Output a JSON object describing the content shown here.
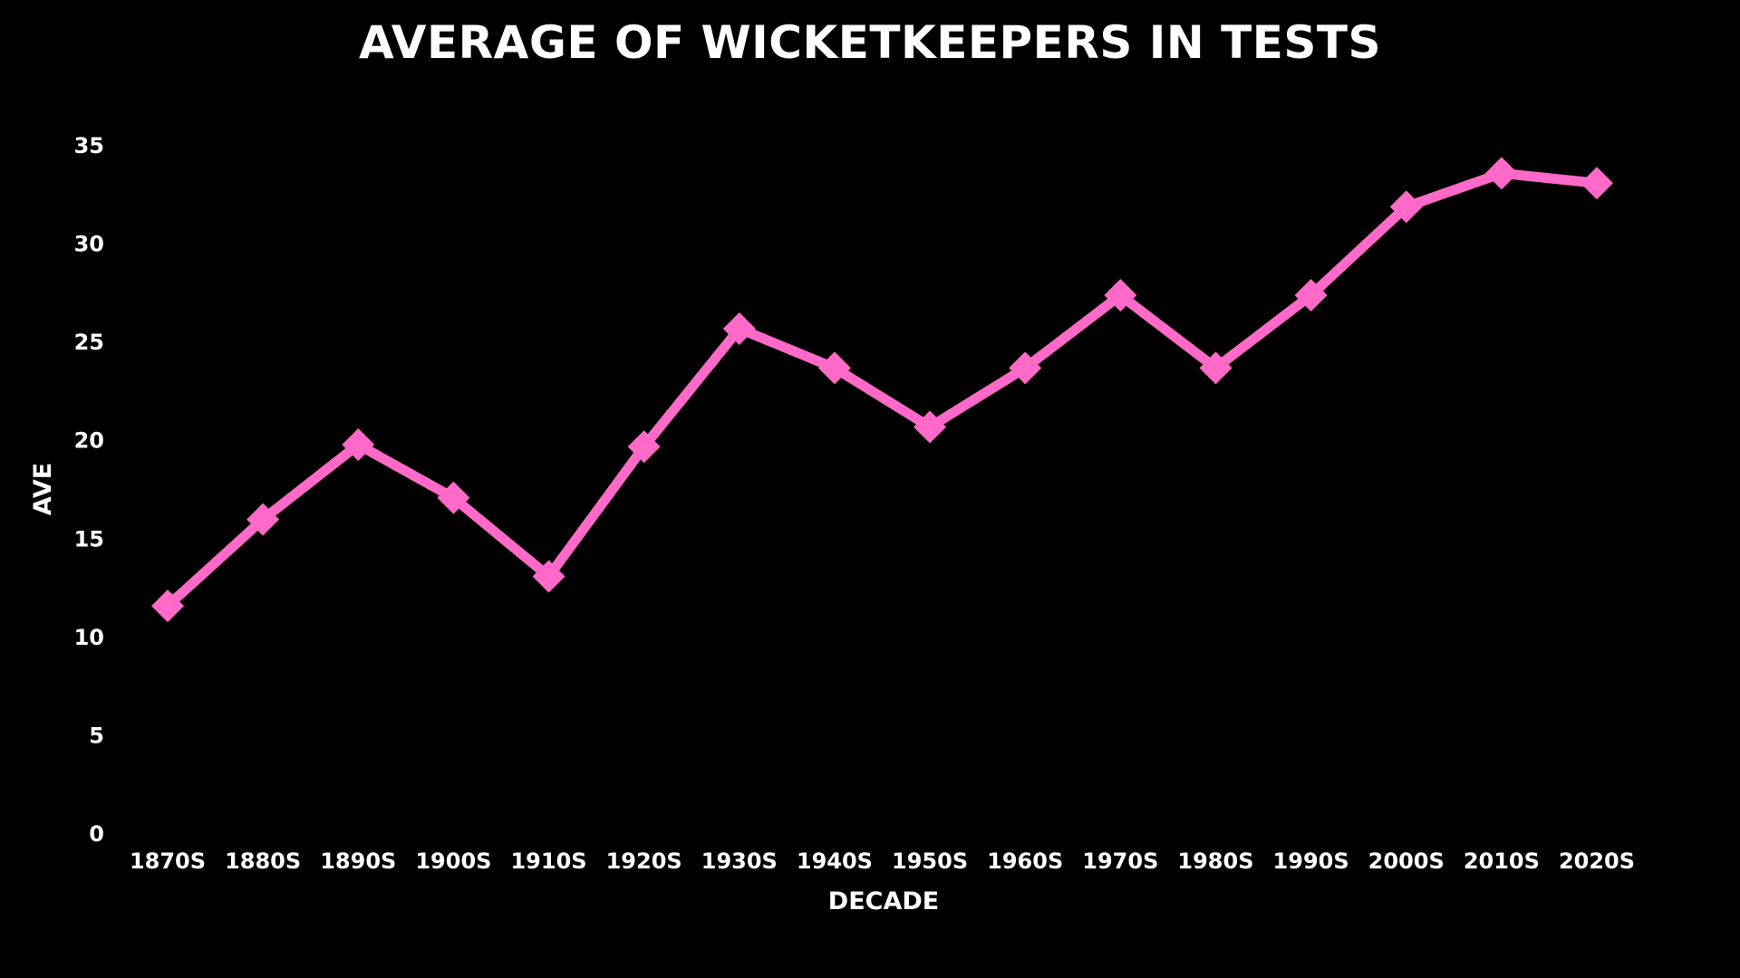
{
  "chart_data": {
    "type": "line",
    "title": "AVERAGE OF WICKETKEEPERS IN TESTS",
    "xlabel": "DECADE",
    "ylabel": "AVE",
    "categories": [
      "1870S",
      "1880S",
      "1890S",
      "1900S",
      "1910S",
      "1920S",
      "1930S",
      "1940S",
      "1950S",
      "1960S",
      "1970S",
      "1980S",
      "1990S",
      "2000S",
      "2010S",
      "2020S"
    ],
    "series": [
      {
        "values": [
          11.6,
          16.0,
          19.8,
          17.1,
          13.1,
          19.7,
          25.7,
          23.7,
          20.7,
          23.7,
          27.4,
          23.7,
          27.4,
          31.9,
          33.6,
          33.1
        ],
        "color": "#ff69c8",
        "marker": "diamond"
      }
    ],
    "ylim": [
      0,
      35
    ],
    "yticks": [
      0,
      5,
      10,
      15,
      20,
      25,
      30,
      35
    ],
    "grid": false,
    "legend": "none",
    "background": "#000000",
    "text_color": "#ffffff"
  }
}
